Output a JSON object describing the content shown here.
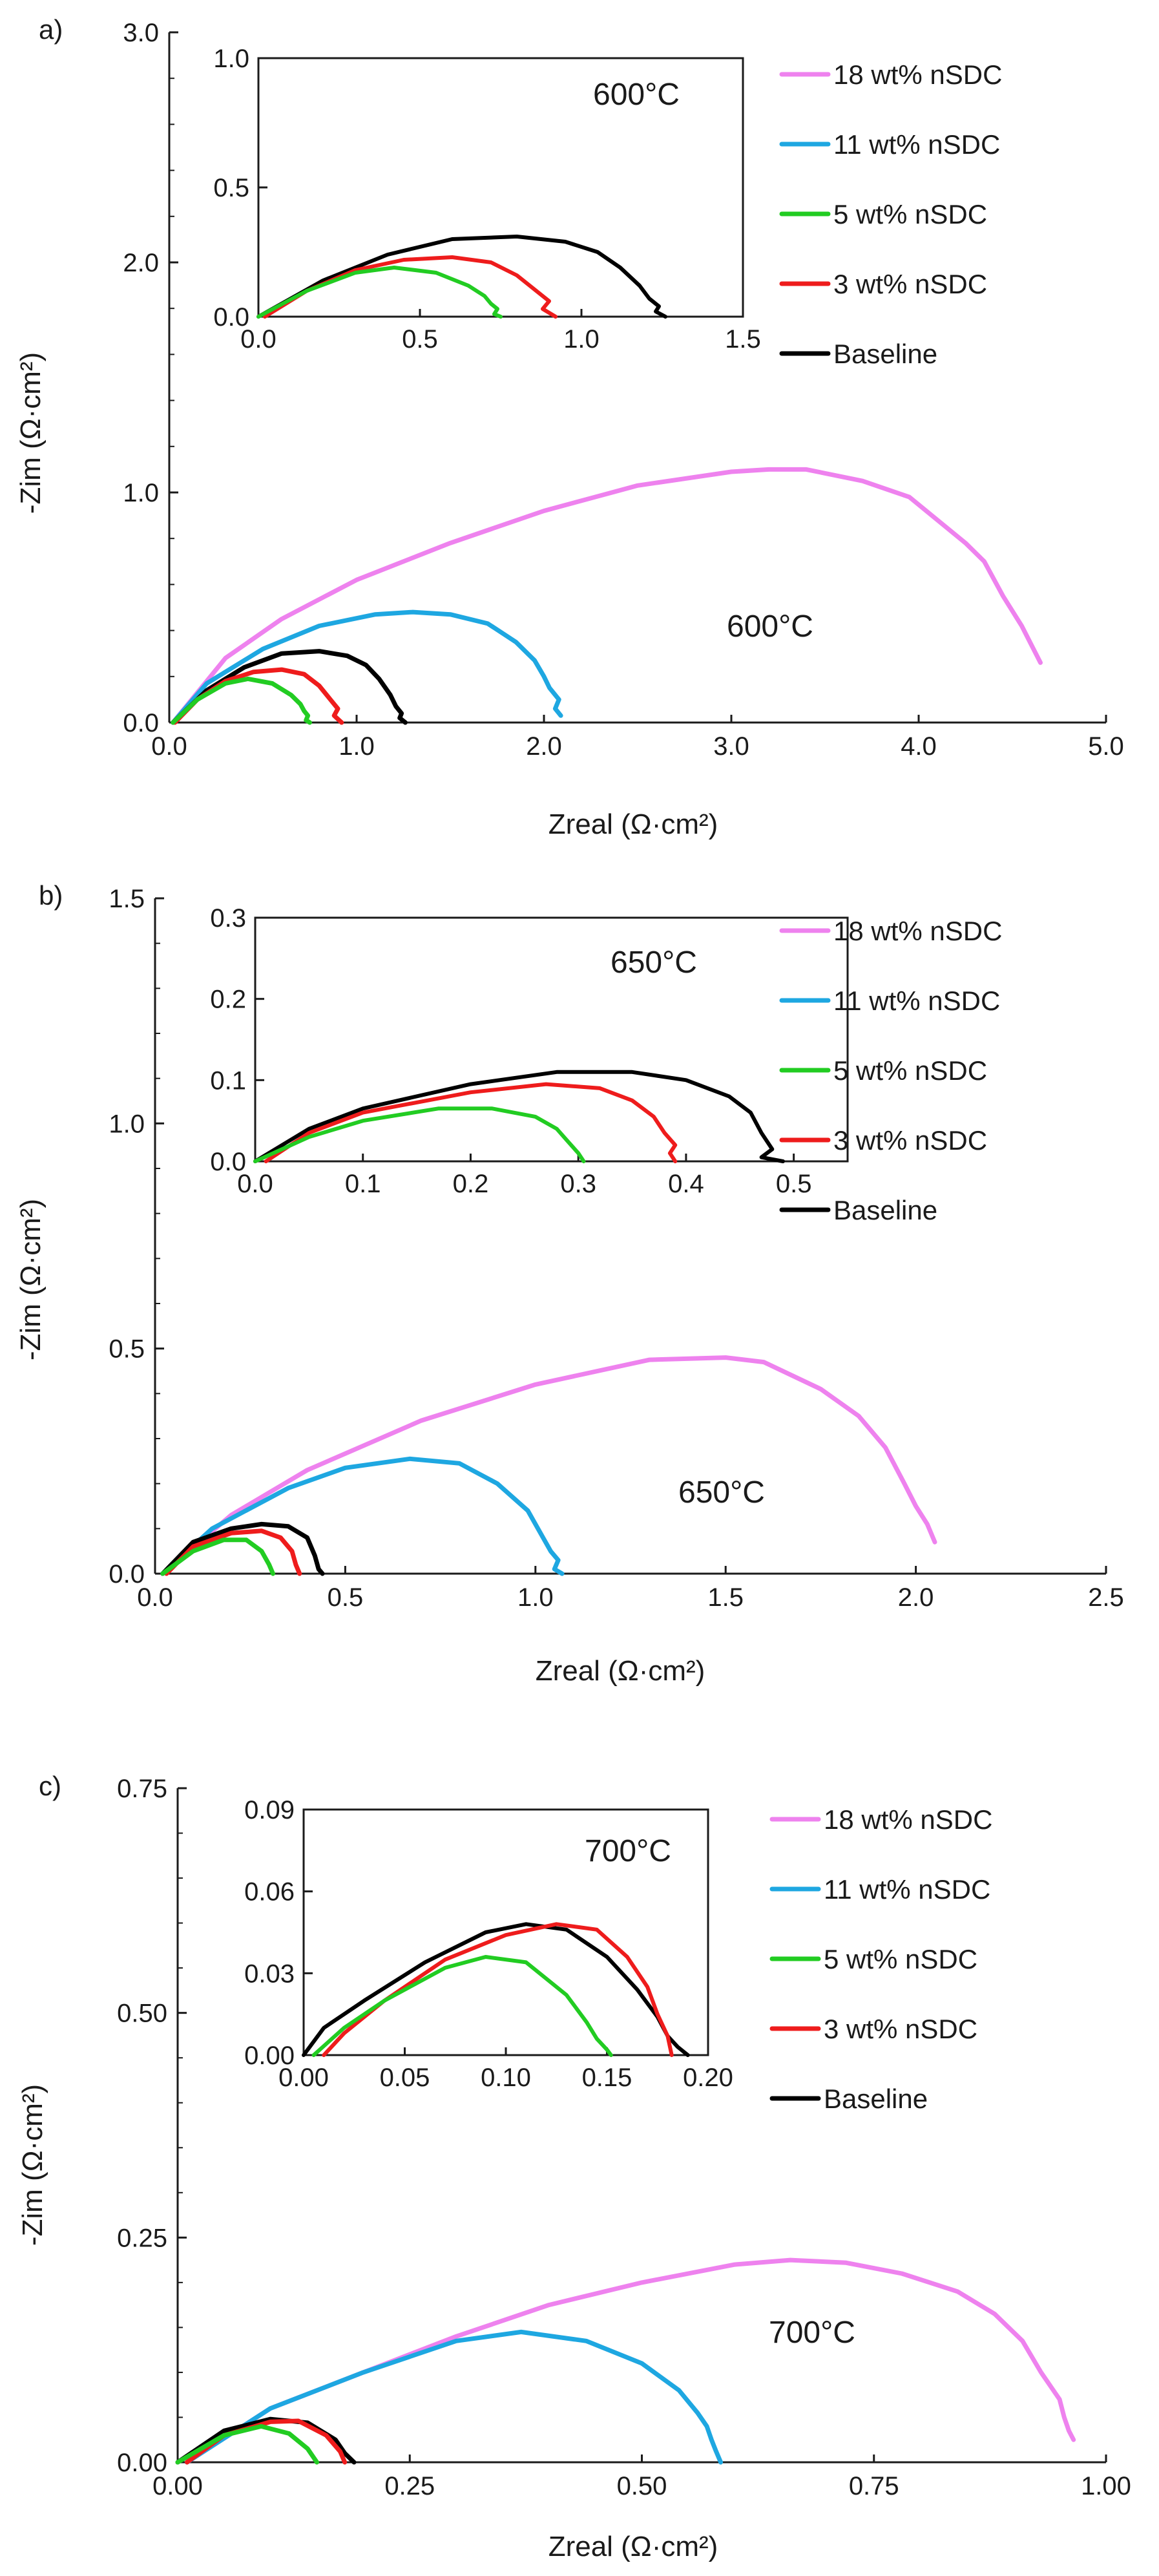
{
  "series_colors": {
    "18 wt% nSDC": "#ee82ee",
    "11 wt% nSDC": "#1ea7e1",
    "5 wt% nSDC": "#22cc22",
    "3 wt% nSDC": "#ee1c1c",
    "Baseline": "#000000"
  },
  "legend": [
    "18 wt% nSDC",
    "11 wt% nSDC",
    "5 wt% nSDC",
    "3 wt% nSDC",
    "Baseline"
  ],
  "chart_data": [
    {
      "panel": "a)",
      "type": "line",
      "temperature": "600°C",
      "xlabel": "Zreal (Ω·cm²)",
      "ylabel": "-Zim (Ω·cm²)",
      "xlim": [
        0,
        5
      ],
      "ylim": [
        0,
        3
      ],
      "xticks": [
        0,
        1,
        2,
        3,
        4,
        5
      ],
      "xtick_labels": [
        "0.0",
        "1.0",
        "2.0",
        "3.0",
        "4.0",
        "5.0"
      ],
      "yticks": [
        0,
        1,
        2,
        3
      ],
      "ytick_labels": [
        "0.0",
        "1.0",
        "2.0",
        "3.0"
      ],
      "series": [
        {
          "name": "18 wt% nSDC",
          "x": [
            0.02,
            0.3,
            0.6,
            1.0,
            1.5,
            2.0,
            2.5,
            3.0,
            3.2,
            3.4,
            3.7,
            3.95,
            4.1,
            4.25,
            4.35,
            4.45,
            4.55,
            4.65
          ],
          "y": [
            0.0,
            0.28,
            0.45,
            0.62,
            0.78,
            0.92,
            1.03,
            1.09,
            1.1,
            1.1,
            1.05,
            0.98,
            0.88,
            0.78,
            0.7,
            0.55,
            0.42,
            0.26
          ]
        },
        {
          "name": "11 wt% nSDC",
          "x": [
            0.02,
            0.2,
            0.5,
            0.8,
            1.1,
            1.3,
            1.5,
            1.7,
            1.85,
            1.95,
            2.0,
            2.03,
            2.08,
            2.06,
            2.09
          ],
          "y": [
            0.0,
            0.17,
            0.32,
            0.42,
            0.47,
            0.48,
            0.47,
            0.43,
            0.35,
            0.27,
            0.2,
            0.15,
            0.1,
            0.06,
            0.03
          ]
        },
        {
          "name": "Baseline",
          "x": [
            0.02,
            0.2,
            0.4,
            0.6,
            0.8,
            0.95,
            1.05,
            1.12,
            1.18,
            1.21,
            1.24,
            1.23,
            1.26
          ],
          "y": [
            0.0,
            0.14,
            0.24,
            0.3,
            0.31,
            0.29,
            0.25,
            0.19,
            0.12,
            0.07,
            0.04,
            0.02,
            0.0
          ]
        },
        {
          "name": "3 wt% nSDC",
          "x": [
            0.03,
            0.15,
            0.3,
            0.45,
            0.6,
            0.72,
            0.8,
            0.86,
            0.9,
            0.88,
            0.92
          ],
          "y": [
            0.0,
            0.1,
            0.18,
            0.22,
            0.23,
            0.21,
            0.16,
            0.1,
            0.06,
            0.03,
            0.0
          ]
        },
        {
          "name": "5 wt% nSDC",
          "x": [
            0.02,
            0.15,
            0.3,
            0.42,
            0.55,
            0.65,
            0.7,
            0.72,
            0.74,
            0.73,
            0.75
          ],
          "y": [
            0.0,
            0.1,
            0.17,
            0.19,
            0.17,
            0.12,
            0.08,
            0.05,
            0.03,
            0.01,
            0.0
          ]
        }
      ]
    },
    {
      "panel": "a) inset",
      "type": "line",
      "temperature": "600°C",
      "xlim": [
        0,
        1.5
      ],
      "ylim": [
        0,
        1
      ],
      "xticks": [
        0,
        0.5,
        1,
        1.5
      ],
      "xtick_labels": [
        "0.0",
        "0.5",
        "1.0",
        "1.5"
      ],
      "yticks": [
        0,
        0.5,
        1
      ],
      "ytick_labels": [
        "0.0",
        "0.5",
        "1.0"
      ],
      "series": [
        {
          "name": "Baseline",
          "x": [
            0.0,
            0.2,
            0.4,
            0.6,
            0.8,
            0.95,
            1.05,
            1.12,
            1.18,
            1.21,
            1.24,
            1.23,
            1.26
          ],
          "y": [
            0.0,
            0.14,
            0.24,
            0.3,
            0.31,
            0.29,
            0.25,
            0.19,
            0.12,
            0.07,
            0.04,
            0.02,
            0.0
          ]
        },
        {
          "name": "3 wt% nSDC",
          "x": [
            0.02,
            0.15,
            0.3,
            0.45,
            0.6,
            0.72,
            0.8,
            0.86,
            0.9,
            0.88,
            0.92
          ],
          "y": [
            0.0,
            0.1,
            0.18,
            0.22,
            0.23,
            0.21,
            0.16,
            0.1,
            0.06,
            0.03,
            0.0
          ]
        },
        {
          "name": "5 wt% nSDC",
          "x": [
            0.0,
            0.15,
            0.3,
            0.42,
            0.55,
            0.65,
            0.7,
            0.72,
            0.74,
            0.73,
            0.75
          ],
          "y": [
            0.0,
            0.1,
            0.17,
            0.19,
            0.17,
            0.12,
            0.08,
            0.05,
            0.03,
            0.01,
            0.0
          ]
        }
      ]
    },
    {
      "panel": "b)",
      "type": "line",
      "temperature": "650°C",
      "xlabel": "Zreal (Ω·cm²)",
      "ylabel": "-Zim (Ω·cm²)",
      "xlim": [
        0,
        2.5
      ],
      "ylim": [
        0,
        1.5
      ],
      "xticks": [
        0,
        0.5,
        1,
        1.5,
        2,
        2.5
      ],
      "xtick_labels": [
        "0.0",
        "0.5",
        "1.0",
        "1.5",
        "2.0",
        "2.5"
      ],
      "yticks": [
        0,
        0.5,
        1,
        1.5
      ],
      "ytick_labels": [
        "0.0",
        "0.5",
        "1.0",
        "1.5"
      ],
      "series": [
        {
          "name": "18 wt% nSDC",
          "x": [
            0.02,
            0.2,
            0.4,
            0.7,
            1.0,
            1.3,
            1.5,
            1.6,
            1.75,
            1.85,
            1.92,
            1.97,
            2.0,
            2.03,
            2.05
          ],
          "y": [
            0.0,
            0.13,
            0.23,
            0.34,
            0.42,
            0.475,
            0.48,
            0.47,
            0.41,
            0.35,
            0.28,
            0.2,
            0.15,
            0.11,
            0.07
          ]
        },
        {
          "name": "11 wt% nSDC",
          "x": [
            0.02,
            0.15,
            0.35,
            0.5,
            0.67,
            0.8,
            0.9,
            0.98,
            1.02,
            1.04,
            1.06,
            1.05,
            1.07
          ],
          "y": [
            0.0,
            0.1,
            0.19,
            0.235,
            0.255,
            0.245,
            0.2,
            0.14,
            0.08,
            0.05,
            0.03,
            0.01,
            0.0
          ]
        },
        {
          "name": "Baseline",
          "x": [
            0.02,
            0.1,
            0.2,
            0.28,
            0.35,
            0.4,
            0.42,
            0.43,
            0.44
          ],
          "y": [
            0.0,
            0.07,
            0.1,
            0.11,
            0.105,
            0.08,
            0.04,
            0.01,
            0.0
          ]
        },
        {
          "name": "3 wt% nSDC",
          "x": [
            0.03,
            0.1,
            0.2,
            0.28,
            0.33,
            0.36,
            0.37,
            0.38
          ],
          "y": [
            0.0,
            0.06,
            0.09,
            0.095,
            0.08,
            0.05,
            0.02,
            0.0
          ]
        },
        {
          "name": "5 wt% nSDC",
          "x": [
            0.02,
            0.1,
            0.18,
            0.24,
            0.28,
            0.3,
            0.31
          ],
          "y": [
            0.0,
            0.05,
            0.075,
            0.075,
            0.05,
            0.02,
            0.0
          ]
        }
      ]
    },
    {
      "panel": "b) inset",
      "type": "line",
      "temperature": "650°C",
      "xlim": [
        0,
        0.55
      ],
      "ylim": [
        0,
        0.3
      ],
      "xticks": [
        0,
        0.1,
        0.2,
        0.3,
        0.4,
        0.5
      ],
      "xtick_labels": [
        "0.0",
        "0.1",
        "0.2",
        "0.3",
        "0.4",
        "0.5"
      ],
      "yticks": [
        0,
        0.1,
        0.2,
        0.3
      ],
      "ytick_labels": [
        "0.0",
        "0.1",
        "0.2",
        "0.3"
      ],
      "series": [
        {
          "name": "Baseline",
          "x": [
            0.0,
            0.05,
            0.1,
            0.2,
            0.28,
            0.35,
            0.4,
            0.44,
            0.46,
            0.47,
            0.48,
            0.47,
            0.49
          ],
          "y": [
            0.0,
            0.04,
            0.065,
            0.095,
            0.11,
            0.11,
            0.1,
            0.08,
            0.06,
            0.035,
            0.015,
            0.005,
            0.0
          ]
        },
        {
          "name": "3 wt% nSDC",
          "x": [
            0.01,
            0.05,
            0.1,
            0.2,
            0.27,
            0.32,
            0.35,
            0.37,
            0.38,
            0.39,
            0.385,
            0.39
          ],
          "y": [
            0.0,
            0.035,
            0.06,
            0.085,
            0.095,
            0.09,
            0.075,
            0.055,
            0.035,
            0.02,
            0.01,
            0.0
          ]
        },
        {
          "name": "5 wt% nSDC",
          "x": [
            0.0,
            0.05,
            0.1,
            0.17,
            0.22,
            0.26,
            0.28,
            0.29,
            0.3,
            0.305
          ],
          "y": [
            0.0,
            0.03,
            0.05,
            0.065,
            0.065,
            0.055,
            0.04,
            0.025,
            0.01,
            0.0
          ]
        }
      ]
    },
    {
      "panel": "c)",
      "type": "line",
      "temperature": "700°C",
      "xlabel": "Zreal (Ω·cm²)",
      "ylabel": "-Zim (Ω·cm²)",
      "xlim": [
        0,
        1
      ],
      "ylim": [
        0,
        0.75
      ],
      "xticks": [
        0,
        0.25,
        0.5,
        0.75,
        1
      ],
      "xtick_labels": [
        "0.00",
        "0.25",
        "0.50",
        "0.75",
        "1.00"
      ],
      "yticks": [
        0,
        0.25,
        0.5,
        0.75
      ],
      "ytick_labels": [
        "0.00",
        "0.25",
        "0.50",
        "0.75"
      ],
      "series": [
        {
          "name": "18 wt% nSDC",
          "x": [
            0.01,
            0.1,
            0.2,
            0.3,
            0.4,
            0.5,
            0.6,
            0.66,
            0.72,
            0.78,
            0.84,
            0.88,
            0.91,
            0.93,
            0.94,
            0.95,
            0.955,
            0.96,
            0.965
          ],
          "y": [
            0.0,
            0.06,
            0.1,
            0.14,
            0.175,
            0.2,
            0.22,
            0.225,
            0.222,
            0.21,
            0.19,
            0.165,
            0.135,
            0.1,
            0.085,
            0.07,
            0.05,
            0.035,
            0.025
          ]
        },
        {
          "name": "11 wt% nSDC",
          "x": [
            0.01,
            0.1,
            0.2,
            0.3,
            0.37,
            0.44,
            0.5,
            0.54,
            0.56,
            0.57,
            0.575,
            0.58,
            0.585
          ],
          "y": [
            0.0,
            0.06,
            0.1,
            0.135,
            0.145,
            0.135,
            0.11,
            0.08,
            0.055,
            0.04,
            0.025,
            0.012,
            0.0
          ]
        },
        {
          "name": "Baseline",
          "x": [
            0.0,
            0.05,
            0.1,
            0.14,
            0.17,
            0.18,
            0.19
          ],
          "y": [
            0.0,
            0.035,
            0.048,
            0.044,
            0.025,
            0.01,
            0.0
          ]
        },
        {
          "name": "3 wt% nSDC",
          "x": [
            0.01,
            0.05,
            0.1,
            0.13,
            0.16,
            0.175,
            0.18
          ],
          "y": [
            0.0,
            0.03,
            0.045,
            0.046,
            0.03,
            0.012,
            0.0
          ]
        },
        {
          "name": "5 wt% nSDC",
          "x": [
            0.0,
            0.05,
            0.09,
            0.12,
            0.14,
            0.15
          ],
          "y": [
            0.0,
            0.03,
            0.04,
            0.032,
            0.015,
            0.0
          ]
        }
      ]
    },
    {
      "panel": "c) inset",
      "type": "line",
      "temperature": "700°C",
      "xlim": [
        0,
        0.2
      ],
      "ylim": [
        0,
        0.09
      ],
      "xticks": [
        0,
        0.05,
        0.1,
        0.15,
        0.2
      ],
      "xtick_labels": [
        "0.00",
        "0.05",
        "0.10",
        "0.15",
        "0.20"
      ],
      "yticks": [
        0,
        0.03,
        0.06,
        0.09
      ],
      "ytick_labels": [
        "0.00",
        "0.03",
        "0.06",
        "0.09"
      ],
      "series": [
        {
          "name": "Baseline",
          "x": [
            0.0,
            0.01,
            0.03,
            0.06,
            0.09,
            0.11,
            0.13,
            0.15,
            0.165,
            0.175,
            0.18,
            0.185,
            0.19
          ],
          "y": [
            0.0,
            0.01,
            0.02,
            0.034,
            0.045,
            0.048,
            0.046,
            0.036,
            0.024,
            0.014,
            0.007,
            0.003,
            0.0
          ]
        },
        {
          "name": "3 wt% nSDC",
          "x": [
            0.01,
            0.02,
            0.04,
            0.07,
            0.1,
            0.125,
            0.145,
            0.16,
            0.17,
            0.175,
            0.18,
            0.182
          ],
          "y": [
            0.0,
            0.008,
            0.02,
            0.035,
            0.044,
            0.048,
            0.046,
            0.036,
            0.025,
            0.015,
            0.007,
            0.0
          ]
        },
        {
          "name": "5 wt% nSDC",
          "x": [
            0.005,
            0.02,
            0.04,
            0.07,
            0.09,
            0.11,
            0.13,
            0.14,
            0.145,
            0.15,
            0.152
          ],
          "y": [
            0.0,
            0.01,
            0.02,
            0.032,
            0.036,
            0.034,
            0.022,
            0.012,
            0.006,
            0.002,
            0.0
          ]
        }
      ]
    }
  ]
}
